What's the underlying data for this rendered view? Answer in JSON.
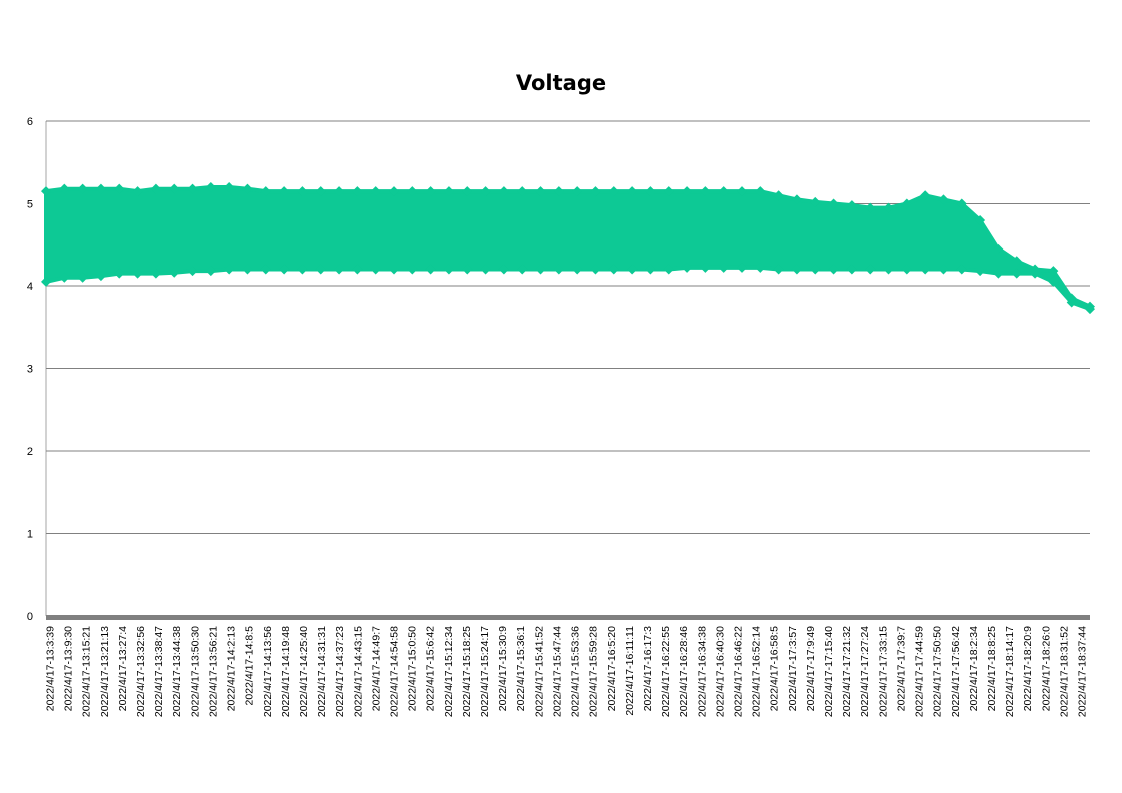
{
  "chart_data": {
    "type": "line",
    "title": "Voltage",
    "xlabel": "",
    "ylabel": "",
    "ylim": [
      0,
      6
    ],
    "yticks": [
      0,
      1,
      2,
      3,
      4,
      5,
      6
    ],
    "grid": true,
    "legend": "none",
    "colors": {
      "series": "#0DC995",
      "grid": "#808080",
      "baseline": "#808080",
      "axis": "#a6a6a6"
    },
    "x_tick_labels": [
      "2022/4/17-13:3:39",
      "2022/4/17-13:9:30",
      "2022/4/17-13:15:21",
      "2022/4/17-13:21:13",
      "2022/4/17-13:27:4",
      "2022/4/17-13:32:56",
      "2022/4/17-13:38:47",
      "2022/4/17-13:44:38",
      "2022/4/17-13:50:30",
      "2022/4/17-13:56:21",
      "2022/4/17-14:2:13",
      "2022/4/17-14:8:5",
      "2022/4/17-14:13:56",
      "2022/4/17-14:19:48",
      "2022/4/17-14:25:40",
      "2022/4/17-14:31:31",
      "2022/4/17-14:37:23",
      "2022/4/17-14:43:15",
      "2022/4/17-14:49:7",
      "2022/4/17-14:54:58",
      "2022/4/17-15:0:50",
      "2022/4/17-15:6:42",
      "2022/4/17-15:12:34",
      "2022/4/17-15:18:25",
      "2022/4/17-15:24:17",
      "2022/4/17-15:30:9",
      "2022/4/17-15:36:1",
      "2022/4/17-15:41:52",
      "2022/4/17-15:47:44",
      "2022/4/17-15:53:36",
      "2022/4/17-15:59:28",
      "2022/4/17-16:5:20",
      "2022/4/17-16:11:11",
      "2022/4/17-16:17:3",
      "2022/4/17-16:22:55",
      "2022/4/17-16:28:46",
      "2022/4/17-16:34:38",
      "2022/4/17-16:40:30",
      "2022/4/17-16:46:22",
      "2022/4/17-16:52:14",
      "2022/4/17-16:58:5",
      "2022/4/17-17:3:57",
      "2022/4/17-17:9:49",
      "2022/4/17-17:15:40",
      "2022/4/17-17:21:32",
      "2022/4/17-17:27:24",
      "2022/4/17-17:33:15",
      "2022/4/17-17:39:7",
      "2022/4/17-17:44:59",
      "2022/4/17-17:50:50",
      "2022/4/17-17:56:42",
      "2022/4/17-18:2:34",
      "2022/4/17-18:8:25",
      "2022/4/17-18:14:17",
      "2022/4/17-18:20:9",
      "2022/4/17-18:26:0",
      "2022/4/17-18:31:52",
      "2022/4/17-18:37:44"
    ],
    "series": [
      {
        "min": [
          4.05,
          4.1,
          4.1,
          4.12,
          4.15,
          4.15,
          4.15,
          4.16,
          4.18,
          4.18,
          4.2,
          4.2,
          4.2,
          4.2,
          4.2,
          4.2,
          4.2,
          4.2,
          4.2,
          4.2,
          4.2,
          4.2,
          4.2,
          4.2,
          4.2,
          4.2,
          4.2,
          4.2,
          4.2,
          4.2,
          4.2,
          4.2,
          4.2,
          4.2,
          4.2,
          4.22,
          4.22,
          4.22,
          4.22,
          4.22,
          4.2,
          4.2,
          4.2,
          4.2,
          4.2,
          4.2,
          4.2,
          4.2,
          4.2,
          4.2,
          4.2,
          4.18,
          4.15,
          4.15,
          4.15,
          4.05,
          3.8,
          3.72
        ],
        "max": [
          5.15,
          5.18,
          5.18,
          5.18,
          5.18,
          5.15,
          5.18,
          5.18,
          5.18,
          5.2,
          5.2,
          5.18,
          5.15,
          5.15,
          5.15,
          5.15,
          5.15,
          5.15,
          5.15,
          5.15,
          5.15,
          5.15,
          5.15,
          5.15,
          5.15,
          5.15,
          5.15,
          5.15,
          5.15,
          5.15,
          5.15,
          5.15,
          5.15,
          5.15,
          5.15,
          5.15,
          5.15,
          5.15,
          5.15,
          5.15,
          5.1,
          5.05,
          5.02,
          5.0,
          4.98,
          4.95,
          4.95,
          5.0,
          5.1,
          5.05,
          5.0,
          4.8,
          4.45,
          4.3,
          4.2,
          4.18,
          3.85,
          3.75
        ]
      }
    ]
  }
}
